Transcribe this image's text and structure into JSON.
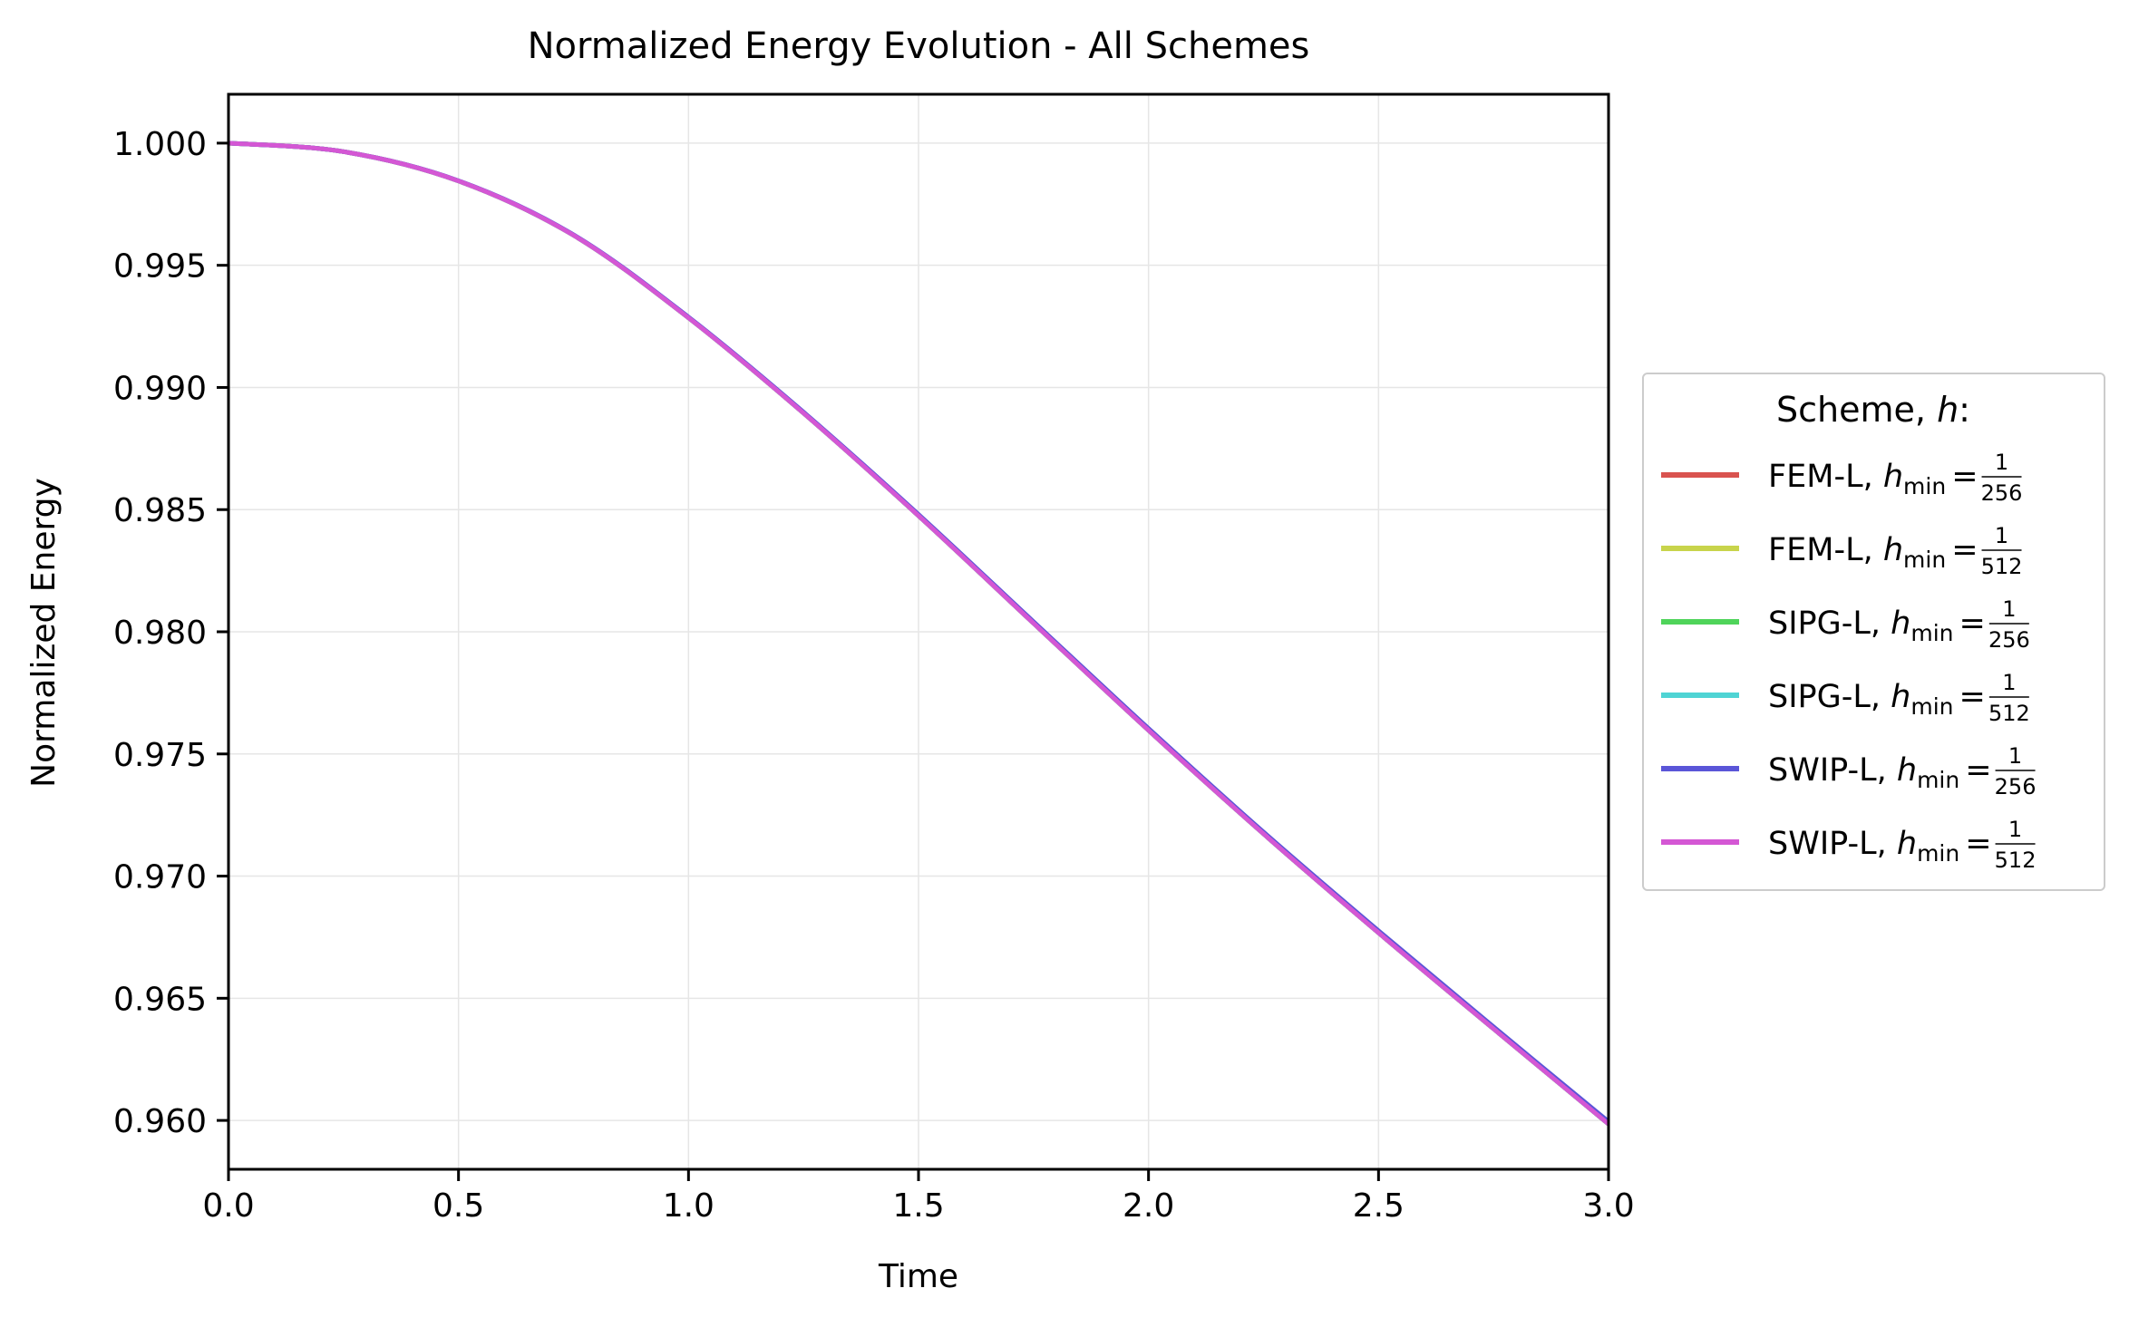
{
  "chart_data": {
    "type": "line",
    "title": "Normalized Energy Evolution - All Schemes",
    "xlabel": "Time",
    "ylabel": "Normalized Energy",
    "xlim": [
      0.0,
      3.0
    ],
    "ylim": [
      0.958,
      1.002
    ],
    "xticks": [
      0.0,
      0.5,
      1.0,
      1.5,
      2.0,
      2.5,
      3.0
    ],
    "xtick_labels": [
      "0.0",
      "0.5",
      "1.0",
      "1.5",
      "2.0",
      "2.5",
      "3.0"
    ],
    "yticks": [
      0.96,
      0.965,
      0.97,
      0.975,
      0.98,
      0.985,
      0.99,
      0.995,
      1.0
    ],
    "ytick_labels": [
      "0.960",
      "0.965",
      "0.970",
      "0.975",
      "0.980",
      "0.985",
      "0.990",
      "0.995",
      "1.000"
    ],
    "grid": true,
    "legend": {
      "title_text": "Scheme, ",
      "title_var": "h",
      "title_suffix": ":",
      "placement": "outside-right",
      "h_symbol": "h",
      "h_sub": "min",
      "equals": "=",
      "numerator": "1"
    },
    "x": [
      0.0,
      0.25,
      0.5,
      0.75,
      1.0,
      1.25,
      1.5,
      1.75,
      2.0,
      2.25,
      2.5,
      2.75,
      3.0
    ],
    "series": [
      {
        "name": "FEM-L",
        "denominator": "256",
        "color": "#d9534f",
        "values": [
          1.0,
          0.99965,
          0.99845,
          0.99623,
          0.99285,
          0.98895,
          0.98475,
          0.98035,
          0.97597,
          0.97173,
          0.96768,
          0.96375,
          0.95985
        ]
      },
      {
        "name": "FEM-L",
        "denominator": "512",
        "color": "#c8d44b",
        "values": [
          1.0,
          0.99965,
          0.99845,
          0.99623,
          0.99285,
          0.98895,
          0.98475,
          0.98035,
          0.97597,
          0.97173,
          0.96768,
          0.96375,
          0.95985
        ]
      },
      {
        "name": "SIPG-L",
        "denominator": "256",
        "color": "#4fd45a",
        "values": [
          1.0,
          0.99965,
          0.99845,
          0.99623,
          0.99285,
          0.98895,
          0.98475,
          0.98035,
          0.97597,
          0.97173,
          0.96768,
          0.96375,
          0.95985
        ]
      },
      {
        "name": "SIPG-L",
        "denominator": "512",
        "color": "#4fd4d4",
        "values": [
          1.0,
          0.99965,
          0.99845,
          0.99623,
          0.99285,
          0.98895,
          0.98475,
          0.98035,
          0.97597,
          0.97173,
          0.96768,
          0.96375,
          0.95985
        ]
      },
      {
        "name": "SWIP-L",
        "denominator": "256",
        "color": "#5a55d8",
        "values": [
          1.0,
          0.99965,
          0.99846,
          0.99625,
          0.99288,
          0.98899,
          0.9848,
          0.98041,
          0.97604,
          0.9718,
          0.96776,
          0.96383,
          0.95995
        ]
      },
      {
        "name": "SWIP-L",
        "denominator": "512",
        "color": "#d457d4",
        "values": [
          1.0,
          0.99965,
          0.99845,
          0.99623,
          0.99285,
          0.98895,
          0.98475,
          0.98035,
          0.97597,
          0.97173,
          0.96768,
          0.96375,
          0.95985
        ]
      }
    ]
  }
}
